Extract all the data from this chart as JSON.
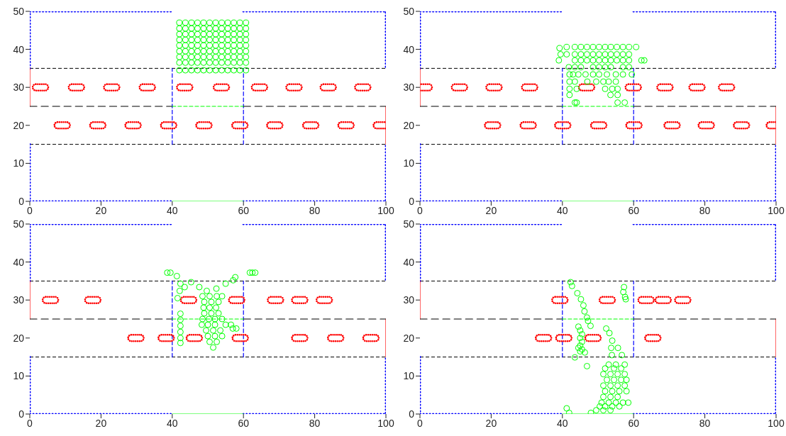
{
  "chart_data": [
    {
      "type": "scatter",
      "xlim": [
        0,
        100
      ],
      "ylim": [
        0,
        50
      ],
      "xticks": [
        0,
        20,
        40,
        60,
        80,
        100
      ],
      "yticks": [
        0,
        10,
        20,
        30,
        40,
        50
      ],
      "ref_lines": [
        {
          "axis": "y",
          "value": 15,
          "color": "#000000",
          "line_style": "dashed"
        },
        {
          "axis": "y",
          "value": 35,
          "color": "#000000",
          "line_style": "dashed"
        }
      ],
      "series": [
        {
          "type": "line",
          "color": "#0000ff",
          "line_style": "dotted",
          "x": [
            0,
            0,
            40
          ],
          "values": [
            35,
            50,
            50
          ]
        },
        {
          "type": "line",
          "color": "#0000ff",
          "line_style": "dotted",
          "x": [
            60,
            100,
            100
          ],
          "values": [
            50,
            50,
            35
          ]
        },
        {
          "type": "line",
          "color": "#0000ff",
          "line_style": "dotted",
          "x": [
            0,
            0,
            40
          ],
          "values": [
            15,
            0,
            0
          ]
        },
        {
          "type": "line",
          "color": "#0000ff",
          "line_style": "dotted",
          "x": [
            60,
            100,
            100
          ],
          "values": [
            0,
            0,
            15
          ]
        },
        {
          "type": "line",
          "color": "#ff0000",
          "line_style": "solid",
          "x": [
            0,
            0
          ],
          "values": [
            25,
            35
          ]
        },
        {
          "type": "line",
          "color": "#ff0000",
          "line_style": "solid",
          "x": [
            100,
            100
          ],
          "values": [
            15,
            25
          ]
        },
        {
          "type": "line",
          "color": "#0000ff",
          "line_style": "dashed",
          "x": [
            40,
            40
          ],
          "values": [
            15,
            35
          ]
        },
        {
          "type": "line",
          "color": "#0000ff",
          "line_style": "dashed",
          "x": [
            60,
            60
          ],
          "values": [
            15,
            35
          ]
        },
        {
          "type": "line",
          "color": "#000000",
          "line_style": "dashed",
          "x": [
            0,
            40
          ],
          "values": [
            25,
            25
          ]
        },
        {
          "type": "line",
          "color": "#000000",
          "line_style": "dashed",
          "x": [
            60,
            100
          ],
          "values": [
            25,
            25
          ]
        },
        {
          "type": "line",
          "color": "#00ff00",
          "line_style": "dashed",
          "x": [
            40,
            60
          ],
          "values": [
            25,
            25
          ]
        },
        {
          "type": "line",
          "color": "#00ff00",
          "line_style": "solid",
          "x": [
            40,
            60
          ],
          "values": [
            0,
            0
          ]
        },
        {
          "type": "scatter",
          "color": "#ff0000",
          "x": [
            3,
            13.1,
            23,
            33,
            43.5,
            53.8,
            64.5,
            74.2,
            83.8,
            93.5
          ],
          "values": [
            30,
            30,
            30,
            30,
            30,
            30,
            30,
            30,
            30,
            30
          ]
        },
        {
          "type": "scatter",
          "color": "#ff0000",
          "x": [
            9.1,
            19.1,
            29,
            39,
            48.9,
            59,
            68.8,
            78.9,
            88.8,
            98.7
          ],
          "values": [
            20,
            20,
            20,
            20,
            20,
            20,
            20,
            20,
            20,
            20
          ]
        },
        {
          "type": "scatter",
          "color": "#00ff00",
          "marker": "circle",
          "x": [
            42,
            43.7,
            45.4,
            47.1,
            48.8,
            50.5,
            52.2,
            53.9,
            55.6,
            57.3,
            59,
            60.7,
            42,
            43.7,
            45.4,
            47.1,
            48.8,
            50.5,
            52.2,
            53.9,
            55.6,
            57.3,
            59,
            60.7,
            42,
            43.7,
            45.4,
            47.1,
            48.8,
            50.5,
            52.2,
            53.9,
            55.6,
            57.3,
            59,
            60.7,
            42,
            43.7,
            45.4,
            47.1,
            48.8,
            50.5,
            52.2,
            53.9,
            55.6,
            57.3,
            59,
            60.7,
            42,
            43.7,
            45.4,
            47.1,
            48.8,
            50.5,
            52.2,
            53.9,
            55.6,
            57.3,
            59,
            60.7,
            42,
            43.7,
            45.4,
            47.1,
            48.8,
            50.5,
            52.2,
            53.9,
            55.6,
            57.3,
            59,
            60.7,
            42,
            43.7,
            45.4,
            47.1,
            48.8,
            50.5,
            52.2,
            53.9,
            55.6,
            57.3,
            59,
            60.7,
            42,
            43.7,
            45.4,
            47.1,
            48.8,
            50.5,
            52.2,
            53.9,
            55.6,
            57.3,
            59,
            60.7,
            42,
            43.7,
            45.4,
            47.1,
            48.8,
            50.5,
            52.2,
            53.9,
            55.6,
            57.3,
            59,
            60.7
          ],
          "values": [
            47,
            47,
            47,
            47,
            47,
            47,
            47,
            47,
            47,
            47,
            47,
            47,
            45.5,
            45.5,
            45.5,
            45.5,
            45.5,
            45.5,
            45.5,
            45.5,
            45.5,
            45.5,
            45.5,
            45.5,
            44,
            44,
            44,
            44,
            44,
            44,
            44,
            44,
            44,
            44,
            44,
            44,
            42.5,
            42.5,
            42.5,
            42.5,
            42.5,
            42.5,
            42.5,
            42.5,
            42.5,
            42.5,
            42.5,
            42.5,
            41,
            41,
            41,
            41,
            41,
            41,
            41,
            41,
            41,
            41,
            41,
            41,
            39.5,
            39.5,
            39.5,
            39.5,
            39.5,
            39.5,
            39.5,
            39.5,
            39.5,
            39.5,
            39.5,
            39.5,
            38,
            38,
            38,
            38,
            38,
            38,
            38,
            38,
            38,
            38,
            38,
            38,
            36.5,
            36.5,
            36.5,
            36.5,
            36.5,
            36.5,
            36.5,
            36.5,
            36.5,
            36.5,
            36.5,
            36.5,
            34.5,
            34.5,
            34.5,
            34.5,
            34.5,
            34.5,
            34.5,
            34.5,
            34.5,
            34.5,
            34.5,
            34.5
          ]
        }
      ]
    },
    {
      "type": "scatter",
      "xlim": [
        0,
        100
      ],
      "ylim": [
        0,
        50
      ],
      "xticks": [
        0,
        20,
        40,
        60,
        80,
        100
      ],
      "yticks": [
        0,
        10,
        20,
        30,
        40,
        50
      ],
      "ref_lines": [
        {
          "axis": "y",
          "value": 15,
          "color": "#000000",
          "line_style": "dashed"
        },
        {
          "axis": "y",
          "value": 35,
          "color": "#000000",
          "line_style": "dashed"
        }
      ],
      "series": [
        {
          "type": "line",
          "color": "#0000ff",
          "line_style": "dotted",
          "x": [
            0,
            0,
            40
          ],
          "values": [
            35,
            50,
            50
          ]
        },
        {
          "type": "line",
          "color": "#0000ff",
          "line_style": "dotted",
          "x": [
            60,
            100,
            100
          ],
          "values": [
            50,
            50,
            35
          ]
        },
        {
          "type": "line",
          "color": "#0000ff",
          "line_style": "dotted",
          "x": [
            0,
            0,
            40
          ],
          "values": [
            15,
            0,
            0
          ]
        },
        {
          "type": "line",
          "color": "#0000ff",
          "line_style": "dotted",
          "x": [
            60,
            100,
            100
          ],
          "values": [
            0,
            0,
            15
          ]
        },
        {
          "type": "line",
          "color": "#ff0000",
          "line_style": "solid",
          "x": [
            0,
            0
          ],
          "values": [
            25,
            35
          ]
        },
        {
          "type": "line",
          "color": "#ff0000",
          "line_style": "solid",
          "x": [
            100,
            100
          ],
          "values": [
            15,
            25
          ]
        },
        {
          "type": "line",
          "color": "#0000ff",
          "line_style": "dashed",
          "x": [
            40,
            40
          ],
          "values": [
            15,
            35
          ]
        },
        {
          "type": "line",
          "color": "#0000ff",
          "line_style": "dashed",
          "x": [
            60,
            60
          ],
          "values": [
            15,
            35
          ]
        },
        {
          "type": "line",
          "color": "#000000",
          "line_style": "dashed",
          "x": [
            0,
            40
          ],
          "values": [
            25,
            25
          ]
        },
        {
          "type": "line",
          "color": "#000000",
          "line_style": "dashed",
          "x": [
            60,
            100
          ],
          "values": [
            25,
            25
          ]
        },
        {
          "type": "line",
          "color": "#00ff00",
          "line_style": "dashed",
          "x": [
            40,
            60
          ],
          "values": [
            25,
            25
          ]
        },
        {
          "type": "line",
          "color": "#00ff00",
          "line_style": "solid",
          "x": [
            40,
            60
          ],
          "values": [
            0,
            0
          ]
        },
        {
          "type": "scatter",
          "color": "#ff0000",
          "x": [
            1.2,
            11.1,
            20.8,
            30.8,
            46.8,
            59.9,
            68.8,
            77.8,
            86.1
          ],
          "values": [
            30,
            30,
            30,
            30,
            30,
            30,
            30,
            30,
            30
          ]
        },
        {
          "type": "scatter",
          "color": "#ff0000",
          "x": [
            20.4,
            30.4,
            40.1,
            50.2,
            60.1,
            70.8,
            80.4,
            90.3,
            99.5
          ],
          "values": [
            20,
            20,
            20,
            20,
            20,
            20,
            20,
            20,
            20
          ]
        },
        {
          "type": "scatter",
          "color": "#00ff00",
          "marker": "circle",
          "x": [
            39.2,
            41.2,
            43.5,
            45.2,
            46.9,
            48.6,
            50.3,
            52,
            53.6,
            55.3,
            57,
            58.7,
            60.7,
            39.5,
            41.2,
            43.5,
            45.2,
            46.9,
            48.6,
            50.3,
            52,
            53.6,
            55.3,
            57,
            58.7,
            39,
            43.5,
            45.2,
            46.9,
            48.6,
            50.3,
            52,
            53.6,
            55.3,
            57,
            58.7,
            62.2,
            63,
            41.8,
            43.5,
            45.2,
            48.6,
            50.3,
            52,
            53.6,
            57,
            58.7,
            42,
            43,
            44.5,
            46.5,
            48.6,
            50.3,
            52.5,
            55,
            57,
            59.5,
            42,
            43.5,
            47,
            49.5,
            51.5,
            53,
            55,
            42,
            44,
            52,
            54,
            55.5,
            42,
            53.5,
            55.5,
            43.5,
            44,
            55.5,
            57.5
          ],
          "values": [
            40.3,
            40.6,
            40.6,
            40.6,
            40.6,
            40.6,
            40.6,
            40.6,
            40.6,
            40.6,
            40.6,
            40.6,
            40.6,
            38.7,
            38.7,
            38.7,
            38.7,
            38.7,
            38.7,
            38.7,
            38.7,
            38.7,
            38.7,
            38.7,
            38.7,
            37.1,
            37.1,
            37.1,
            37.1,
            37.1,
            37.1,
            37.1,
            37.1,
            37.1,
            37.1,
            37.1,
            37.1,
            37.1,
            35.3,
            35.3,
            35.3,
            35.3,
            35.3,
            35.3,
            35.3,
            35.3,
            35.3,
            33.4,
            33.4,
            33.4,
            33.4,
            33.4,
            33.4,
            33.4,
            33.4,
            33.4,
            33.4,
            31.5,
            31.5,
            31.5,
            31.5,
            31.5,
            31.5,
            31.5,
            29.6,
            29.6,
            29.6,
            29.6,
            29.6,
            28,
            28,
            28,
            26,
            26,
            26,
            26
          ]
        }
      ]
    },
    {
      "type": "scatter",
      "xlim": [
        0,
        100
      ],
      "ylim": [
        0,
        50
      ],
      "xticks": [
        0,
        20,
        40,
        60,
        80,
        100
      ],
      "yticks": [
        0,
        10,
        20,
        30,
        40,
        50
      ],
      "ref_lines": [
        {
          "axis": "y",
          "value": 15,
          "color": "#000000",
          "line_style": "dashed"
        },
        {
          "axis": "y",
          "value": 35,
          "color": "#000000",
          "line_style": "dashed"
        }
      ],
      "series": [
        {
          "type": "line",
          "color": "#0000ff",
          "line_style": "dotted",
          "x": [
            0,
            0,
            40
          ],
          "values": [
            35,
            50,
            50
          ]
        },
        {
          "type": "line",
          "color": "#0000ff",
          "line_style": "dotted",
          "x": [
            60,
            100,
            100
          ],
          "values": [
            50,
            50,
            35
          ]
        },
        {
          "type": "line",
          "color": "#0000ff",
          "line_style": "dotted",
          "x": [
            0,
            0,
            40
          ],
          "values": [
            15,
            0,
            0
          ]
        },
        {
          "type": "line",
          "color": "#0000ff",
          "line_style": "dotted",
          "x": [
            60,
            100,
            100
          ],
          "values": [
            0,
            0,
            15
          ]
        },
        {
          "type": "line",
          "color": "#ff0000",
          "line_style": "solid",
          "x": [
            0,
            0
          ],
          "values": [
            25,
            35
          ]
        },
        {
          "type": "line",
          "color": "#ff0000",
          "line_style": "solid",
          "x": [
            100,
            100
          ],
          "values": [
            15,
            25
          ]
        },
        {
          "type": "line",
          "color": "#0000ff",
          "line_style": "dashed",
          "x": [
            40,
            40
          ],
          "values": [
            15,
            35
          ]
        },
        {
          "type": "line",
          "color": "#0000ff",
          "line_style": "dashed",
          "x": [
            60,
            60
          ],
          "values": [
            15,
            35
          ]
        },
        {
          "type": "line",
          "color": "#000000",
          "line_style": "dashed",
          "x": [
            0,
            40
          ],
          "values": [
            25,
            25
          ]
        },
        {
          "type": "line",
          "color": "#000000",
          "line_style": "dashed",
          "x": [
            60,
            100
          ],
          "values": [
            25,
            25
          ]
        },
        {
          "type": "line",
          "color": "#00ff00",
          "line_style": "dashed",
          "x": [
            40,
            60
          ],
          "values": [
            25,
            25
          ]
        },
        {
          "type": "line",
          "color": "#00ff00",
          "line_style": "solid",
          "x": [
            40,
            60
          ],
          "values": [
            0,
            0
          ]
        },
        {
          "type": "scatter",
          "color": "#ff0000",
          "x": [
            5.8,
            17.7,
            44.6,
            58.1,
            69,
            75.8,
            82.7
          ],
          "values": [
            30,
            30,
            30,
            30,
            30,
            30,
            30
          ]
        },
        {
          "type": "scatter",
          "color": "#ff0000",
          "x": [
            29.8,
            38.3,
            46.2,
            59.1,
            75.8,
            85.9,
            95.8
          ],
          "values": [
            20,
            20,
            20,
            20,
            20,
            20,
            20
          ]
        },
        {
          "type": "scatter",
          "color": "#00ff00",
          "marker": "circle",
          "x": [
            38.6,
            39.5,
            61.8,
            62.5,
            63.3,
            41.3,
            42.3,
            42.1,
            41.5,
            43.5,
            45.3,
            47.6,
            49.7,
            52.4,
            55,
            57.1,
            57.7,
            48.5,
            50.5,
            52.5,
            54,
            49,
            51,
            53,
            48.8,
            50.5,
            52.3,
            49,
            51,
            53,
            48.5,
            50.3,
            52,
            54,
            48.3,
            50,
            52,
            55,
            56.5,
            57,
            58,
            49.5,
            51.5,
            53.5,
            50,
            52,
            54,
            50.5,
            52.5,
            51.5,
            42.3,
            42.3,
            42.3,
            42.3,
            42.3,
            42.3
          ],
          "values": [
            37.2,
            37.2,
            37.2,
            37.2,
            37.2,
            36.3,
            34.3,
            32.4,
            30.5,
            33.4,
            34.7,
            33.4,
            32.4,
            33,
            34.3,
            35.2,
            36,
            31,
            31,
            31,
            31,
            29.5,
            29.5,
            29.5,
            28,
            28,
            28,
            26.5,
            26.5,
            26.5,
            25,
            25,
            25,
            25,
            23.5,
            23.5,
            23.5,
            23.5,
            23.5,
            22.5,
            22.5,
            22,
            22,
            22,
            20.5,
            20.5,
            20.5,
            19,
            19,
            17.5,
            26.4,
            24.8,
            23.2,
            21.6,
            20,
            18.7
          ]
        }
      ]
    },
    {
      "type": "scatter",
      "xlim": [
        0,
        100
      ],
      "ylim": [
        0,
        50
      ],
      "xticks": [
        0,
        20,
        40,
        60,
        80,
        100
      ],
      "yticks": [
        0,
        10,
        20,
        30,
        40,
        50
      ],
      "ref_lines": [
        {
          "axis": "y",
          "value": 15,
          "color": "#000000",
          "line_style": "dashed"
        },
        {
          "axis": "y",
          "value": 35,
          "color": "#000000",
          "line_style": "dashed"
        }
      ],
      "series": [
        {
          "type": "line",
          "color": "#0000ff",
          "line_style": "dotted",
          "x": [
            0,
            0,
            40
          ],
          "values": [
            35,
            50,
            50
          ]
        },
        {
          "type": "line",
          "color": "#0000ff",
          "line_style": "dotted",
          "x": [
            60,
            100,
            100
          ],
          "values": [
            50,
            50,
            35
          ]
        },
        {
          "type": "line",
          "color": "#0000ff",
          "line_style": "dotted",
          "x": [
            0,
            0,
            40
          ],
          "values": [
            15,
            0,
            0
          ]
        },
        {
          "type": "line",
          "color": "#0000ff",
          "line_style": "dotted",
          "x": [
            60,
            100,
            100
          ],
          "values": [
            0,
            0,
            15
          ]
        },
        {
          "type": "line",
          "color": "#ff0000",
          "line_style": "solid",
          "x": [
            0,
            0
          ],
          "values": [
            25,
            35
          ]
        },
        {
          "type": "line",
          "color": "#ff0000",
          "line_style": "solid",
          "x": [
            100,
            100
          ],
          "values": [
            15,
            25
          ]
        },
        {
          "type": "line",
          "color": "#0000ff",
          "line_style": "dashed",
          "x": [
            40,
            40
          ],
          "values": [
            15,
            35
          ]
        },
        {
          "type": "line",
          "color": "#0000ff",
          "line_style": "dashed",
          "x": [
            60,
            60
          ],
          "values": [
            15,
            35
          ]
        },
        {
          "type": "line",
          "color": "#000000",
          "line_style": "dashed",
          "x": [
            0,
            40
          ],
          "values": [
            25,
            25
          ]
        },
        {
          "type": "line",
          "color": "#000000",
          "line_style": "dashed",
          "x": [
            60,
            100
          ],
          "values": [
            25,
            25
          ]
        },
        {
          "type": "line",
          "color": "#00ff00",
          "line_style": "dashed",
          "x": [
            40,
            60
          ],
          "values": [
            25,
            25
          ]
        },
        {
          "type": "line",
          "color": "#00ff00",
          "line_style": "solid",
          "x": [
            40,
            60
          ],
          "values": [
            0,
            0
          ]
        },
        {
          "type": "scatter",
          "color": "#ff0000",
          "x": [
            39.3,
            52.6,
            63.5,
            68.3,
            73.8
          ],
          "values": [
            30,
            30,
            30,
            30,
            30
          ]
        },
        {
          "type": "scatter",
          "color": "#ff0000",
          "x": [
            34.7,
            40.4,
            48.6,
            65.4
          ],
          "values": [
            20,
            20,
            20,
            20
          ]
        },
        {
          "type": "scatter",
          "color": "#00ff00",
          "marker": "circle",
          "x": [
            42.3,
            42.7,
            44.2,
            45.2,
            45.9,
            46.2,
            46.9,
            47.2,
            47.9,
            45,
            45.5,
            45,
            45.5,
            45,
            45.5,
            45,
            44.5,
            44.5,
            46.3,
            43.5,
            46.9,
            52.3,
            53.2,
            54,
            53.7,
            55.6,
            56.7,
            53.9,
            53,
            55,
            57.5,
            52,
            54.5,
            56.5,
            51.5,
            53.5,
            55.5,
            57.5,
            52.5,
            54.5,
            56.5,
            58,
            51.5,
            53.5,
            55.5,
            57.5,
            52,
            54,
            56,
            58,
            51.5,
            53.5,
            55.5,
            51,
            53,
            55,
            57,
            58.5,
            50.5,
            52,
            54,
            56,
            49.5,
            51.5,
            53.5,
            48,
            41.2,
            41.9,
            57.3,
            57.1,
            57.6,
            57.8
          ],
          "values": [
            34.7,
            33.7,
            31.8,
            30.2,
            28.6,
            27,
            25.4,
            24.5,
            23.2,
            22,
            21,
            20,
            19,
            18,
            17,
            16.5,
            23,
            17.4,
            16.2,
            14.9,
            12.6,
            22.5,
            21.3,
            19.3,
            17.4,
            17.4,
            15.5,
            15.5,
            13,
            13,
            13,
            12,
            12,
            12,
            10.5,
            10.5,
            10.5,
            10.5,
            9,
            9,
            9,
            9,
            7.5,
            7.5,
            7.5,
            7.5,
            6,
            6,
            6,
            6,
            4.5,
            4.5,
            4.5,
            3,
            3,
            3,
            3,
            3,
            2,
            2,
            2,
            2,
            1,
            1,
            1,
            0.3,
            1.5,
            0.3,
            33.4,
            32.1,
            30.8,
            30.2
          ]
        }
      ]
    }
  ]
}
